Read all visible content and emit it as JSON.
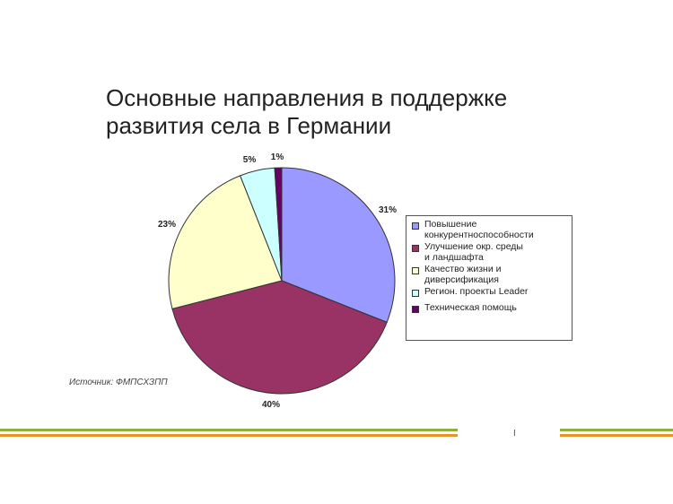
{
  "chart_data": {
    "type": "pie",
    "title": [
      "Основные направления в поддержке",
      "развития села в Германии"
    ],
    "slices": [
      {
        "label": "Повышение\nконкурентноспособности",
        "value": 31,
        "display": "31%",
        "color": "#9999ff"
      },
      {
        "label": "Улучшение окр. среды\nи ландшафта",
        "value": 40,
        "display": "40%",
        "color": "#993366"
      },
      {
        "label": "Качество жизни и\nдиверсификация",
        "value": 23,
        "display": "23%",
        "color": "#ffffcc"
      },
      {
        "label": "Регион. проекты Leader",
        "value": 5,
        "display": "5%",
        "color": "#ccffff"
      },
      {
        "label": "Техническая помощь",
        "value": 1,
        "display": "1%",
        "color": "#660066"
      }
    ],
    "legend_position": "right"
  },
  "source": "Источник: ФМПСХЗПП",
  "page_marker": "I",
  "stripe_colors": {
    "green": "#8db03c",
    "orange": "#e8922a"
  }
}
